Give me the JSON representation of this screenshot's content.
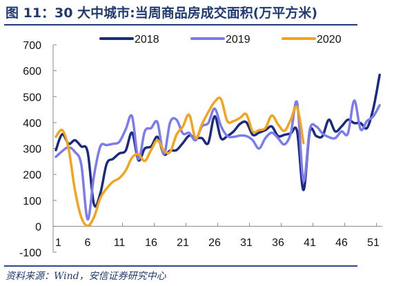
{
  "header": {
    "title": "图 11：30 大中城市:当周商品房成交面积(万平方米)"
  },
  "footer": {
    "source": "资料来源：Wind，安信证券研究中心"
  },
  "chart_data": {
    "type": "line",
    "title": "30 大中城市:当周商品房成交面积(万平方米)",
    "xlabel": "",
    "ylabel": "",
    "ylim": [
      -100,
      700
    ],
    "yticks": [
      -100,
      0,
      100,
      200,
      300,
      400,
      500,
      600,
      700
    ],
    "xlim": [
      1,
      52
    ],
    "xticks": [
      1,
      6,
      11,
      16,
      21,
      26,
      31,
      36,
      41,
      46,
      51
    ],
    "grid": false,
    "legend_position": "top",
    "series": [
      {
        "name": "2018",
        "color": "#1a2a80",
        "values": [
          294,
          355,
          318,
          332,
          308,
          287,
          85,
          127,
          241,
          260,
          281,
          292,
          361,
          255,
          300,
          308,
          345,
          278,
          292,
          294,
          321,
          350,
          340,
          340,
          321,
          424,
          340,
          348,
          366,
          395,
          401,
          353,
          361,
          371,
          385,
          348,
          353,
          358,
          366,
          140,
          366,
          348,
          348,
          411,
          366,
          385,
          411,
          398,
          398,
          379,
          454,
          584
        ]
      },
      {
        "name": "2019",
        "color": "#7b7bef",
        "values": [
          268,
          290,
          305,
          287,
          238,
          27,
          195,
          308,
          313,
          318,
          326,
          374,
          424,
          260,
          366,
          379,
          401,
          278,
          401,
          411,
          358,
          360,
          332,
          385,
          398,
          454,
          387,
          348,
          345,
          350,
          348,
          332,
          300,
          340,
          361,
          340,
          316,
          358,
          477,
          175,
          374,
          385,
          358,
          344,
          340,
          366,
          358,
          485,
          374,
          406,
          424,
          467
        ]
      },
      {
        "name": "2020",
        "color": "#f5a31a",
        "values": [
          345,
          371,
          300,
          140,
          35,
          2,
          35,
          109,
          146,
          172,
          186,
          215,
          265,
          278,
          252,
          294,
          332,
          292,
          287,
          353,
          385,
          430,
          340,
          393,
          440,
          480,
          491,
          406,
          406,
          418,
          432,
          366,
          371,
          379,
          427,
          393,
          368,
          411,
          459,
          321
        ]
      }
    ]
  }
}
